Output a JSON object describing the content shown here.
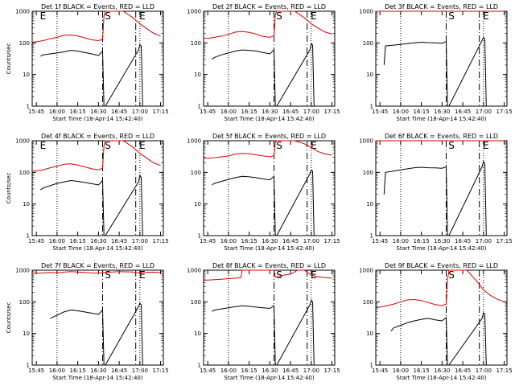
{
  "colors": {
    "events": "#000000",
    "lld": "#dd0000",
    "axes": "#000000",
    "background": "#ffffff"
  },
  "chart_data": [
    {
      "type": "line",
      "title": "Det 1f BLACK = Events, RED = LLD",
      "xlabel": "Start Time (18-Apr-14 15:42:40)",
      "ylabel": "Counts/sec",
      "xticks": [
        "15:45",
        "16:00",
        "16:15",
        "16:30",
        "16:45",
        "17:00",
        "17:15"
      ],
      "yticks": [
        "1",
        "10",
        "100",
        "1000"
      ],
      "ylim": [
        1,
        1000
      ],
      "yscale": "log",
      "markers": [
        "E",
        "S",
        "E"
      ],
      "series": [
        {
          "name": "LLD",
          "color": "#dd0000",
          "x": [
            -3,
            0,
            5,
            10,
            15,
            20,
            25,
            30,
            35,
            40,
            45,
            48,
            49,
            50,
            55,
            60,
            63,
            70,
            75,
            80,
            85,
            90
          ],
          "y": [
            105,
            108,
            118,
            135,
            150,
            175,
            178,
            165,
            145,
            125,
            118,
            130,
            700,
            1000,
            1000,
            1000,
            1000,
            620,
            400,
            280,
            200,
            165
          ]
        },
        {
          "name": "Events",
          "color": "#000000",
          "x": [
            3,
            5,
            10,
            15,
            20,
            25,
            30,
            35,
            40,
            45,
            48,
            49,
            50,
            74,
            75,
            76,
            77,
            78,
            79
          ],
          "y": [
            38,
            42,
            45,
            48,
            52,
            58,
            55,
            50,
            45,
            40,
            55,
            1,
            1,
            60,
            88,
            80,
            1,
            1,
            1
          ]
        }
      ]
    },
    {
      "type": "line",
      "title": "Det 2f BLACK = Events, RED = LLD",
      "xlabel": "Start Time (18-Apr-14 15:42:40)",
      "ylabel": "",
      "xticks": [
        "15:45",
        "16:00",
        "16:15",
        "16:30",
        "16:45",
        "17:00",
        "17:15"
      ],
      "yticks": [
        "1",
        "10",
        "100",
        "1000"
      ],
      "ylim": [
        1,
        1000
      ],
      "yscale": "log",
      "markers": [
        "S",
        "E"
      ],
      "series": [
        {
          "name": "LLD",
          "color": "#dd0000",
          "x": [
            -3,
            0,
            5,
            10,
            15,
            20,
            25,
            30,
            35,
            40,
            45,
            48,
            49,
            50,
            55,
            60,
            63,
            70,
            75,
            80,
            85,
            90
          ],
          "y": [
            140,
            140,
            150,
            165,
            185,
            220,
            230,
            215,
            190,
            160,
            150,
            170,
            800,
            1000,
            1000,
            1000,
            1000,
            620,
            400,
            290,
            220,
            190
          ]
        },
        {
          "name": "Events",
          "color": "#000000",
          "x": [
            3,
            5,
            10,
            15,
            20,
            25,
            30,
            35,
            40,
            45,
            48,
            49,
            50,
            74,
            75,
            76,
            77,
            78,
            79
          ],
          "y": [
            30,
            35,
            42,
            48,
            55,
            60,
            58,
            55,
            50,
            45,
            60,
            1,
            1,
            60,
            95,
            85,
            1,
            1,
            1
          ]
        }
      ]
    },
    {
      "type": "line",
      "title": "Det 3f BLACK = Events, RED = LLD",
      "xlabel": "Start Time (18-Apr-14 15:42:40)",
      "ylabel": "",
      "xticks": [
        "15:45",
        "16:00",
        "16:15",
        "16:30",
        "16:45",
        "17:00",
        "17:15"
      ],
      "yticks": [
        "1",
        "10",
        "100",
        "1000"
      ],
      "ylim": [
        1,
        1000
      ],
      "yscale": "log",
      "markers": [
        "S",
        "E"
      ],
      "series": [
        {
          "name": "LLD",
          "color": "#dd0000",
          "x": [
            -3,
            10,
            20,
            30,
            40,
            50,
            60,
            70,
            80,
            90
          ],
          "y": [
            1000,
            1000,
            1000,
            1000,
            1000,
            1000,
            1000,
            1000,
            1000,
            1000
          ]
        },
        {
          "name": "Events",
          "color": "#000000",
          "x": [
            3,
            4,
            10,
            15,
            20,
            25,
            30,
            35,
            40,
            45,
            48,
            49,
            50,
            74,
            75,
            76,
            77,
            78,
            79
          ],
          "y": [
            20,
            80,
            85,
            90,
            95,
            100,
            105,
            102,
            100,
            98,
            110,
            1,
            1,
            120,
            150,
            130,
            1,
            1,
            1
          ]
        }
      ]
    },
    {
      "type": "line",
      "title": "Det 4f BLACK = Events, RED = LLD",
      "xlabel": "Start Time (18-Apr-14 15:42:40)",
      "ylabel": "Counts/sec",
      "xticks": [
        "15:45",
        "16:00",
        "16:15",
        "16:30",
        "16:45",
        "17:00",
        "17:15"
      ],
      "yticks": [
        "1",
        "10",
        "100",
        "1000"
      ],
      "ylim": [
        1,
        1000
      ],
      "yscale": "log",
      "markers": [
        "E",
        "S",
        "E"
      ],
      "series": [
        {
          "name": "LLD",
          "color": "#dd0000",
          "x": [
            -3,
            0,
            5,
            10,
            15,
            20,
            25,
            30,
            35,
            40,
            45,
            48,
            49,
            50,
            55,
            60,
            63,
            70,
            75,
            80,
            85,
            90
          ],
          "y": [
            110,
            112,
            120,
            140,
            155,
            180,
            185,
            170,
            150,
            130,
            120,
            135,
            700,
            1000,
            1000,
            1000,
            1000,
            620,
            400,
            280,
            200,
            165
          ]
        },
        {
          "name": "Events",
          "color": "#000000",
          "x": [
            3,
            5,
            10,
            15,
            20,
            25,
            30,
            35,
            40,
            45,
            48,
            49,
            50,
            74,
            75,
            76,
            77,
            78,
            79
          ],
          "y": [
            28,
            32,
            38,
            45,
            50,
            55,
            52,
            48,
            44,
            40,
            55,
            1,
            1,
            50,
            80,
            70,
            1,
            1,
            1
          ]
        }
      ]
    },
    {
      "type": "line",
      "title": "Det 5f BLACK = Events, RED = LLD",
      "xlabel": "Start Time (18-Apr-14 15:42:40)",
      "ylabel": "",
      "xticks": [
        "15:45",
        "16:00",
        "16:15",
        "16:30",
        "16:45",
        "17:00",
        "17:15"
      ],
      "yticks": [
        "1",
        "10",
        "100",
        "1000"
      ],
      "ylim": [
        1,
        1000
      ],
      "yscale": "log",
      "markers": [
        "S",
        "E"
      ],
      "series": [
        {
          "name": "LLD",
          "color": "#dd0000",
          "x": [
            -3,
            0,
            5,
            10,
            15,
            20,
            25,
            30,
            35,
            40,
            45,
            48,
            49,
            50,
            55,
            60,
            63,
            70,
            75,
            80,
            85,
            90
          ],
          "y": [
            280,
            280,
            290,
            310,
            330,
            380,
            400,
            390,
            360,
            330,
            310,
            340,
            900,
            1000,
            1000,
            1000,
            1000,
            800,
            600,
            450,
            380,
            350
          ]
        },
        {
          "name": "Events",
          "color": "#000000",
          "x": [
            3,
            5,
            10,
            15,
            20,
            25,
            30,
            35,
            40,
            45,
            48,
            49,
            50,
            74,
            75,
            76,
            77,
            78,
            79
          ],
          "y": [
            40,
            45,
            52,
            60,
            68,
            75,
            72,
            68,
            62,
            58,
            75,
            1,
            1,
            90,
            120,
            110,
            1,
            1,
            1
          ]
        }
      ]
    },
    {
      "type": "line",
      "title": "Det 6f BLACK = Events, RED = LLD",
      "xlabel": "Start Time (18-Apr-14 15:42:40)",
      "ylabel": "",
      "xticks": [
        "15:45",
        "16:00",
        "16:15",
        "16:30",
        "16:45",
        "17:00",
        "17:15"
      ],
      "yticks": [
        "1",
        "10",
        "100",
        "1000"
      ],
      "ylim": [
        1,
        1000
      ],
      "yscale": "log",
      "markers": [
        "S",
        "E"
      ],
      "series": [
        {
          "name": "LLD",
          "color": "#dd0000",
          "x": [
            -3,
            10,
            20,
            30,
            40,
            50,
            60,
            70,
            80,
            90
          ],
          "y": [
            1000,
            1000,
            1000,
            1000,
            1000,
            1000,
            1000,
            1000,
            1000,
            1000
          ]
        },
        {
          "name": "Events",
          "color": "#000000",
          "x": [
            3,
            4,
            10,
            15,
            20,
            25,
            30,
            35,
            40,
            45,
            48,
            49,
            50,
            74,
            75,
            76,
            77,
            78,
            79
          ],
          "y": [
            20,
            100,
            110,
            120,
            130,
            140,
            145,
            140,
            138,
            135,
            150,
            1,
            1,
            150,
            220,
            190,
            1,
            1,
            1
          ]
        }
      ]
    },
    {
      "type": "line",
      "title": "Det 7f BLACK = Events, RED = LLD",
      "xlabel": "Start Time (18-Apr-14 15:42:40)",
      "ylabel": "Counts/sec",
      "xticks": [
        "15:45",
        "16:00",
        "16:15",
        "16:30",
        "16:45",
        "17:00",
        "17:15"
      ],
      "yticks": [
        "1",
        "10",
        "100",
        "1000"
      ],
      "ylim": [
        1,
        1000
      ],
      "yscale": "log",
      "markers": [
        "S",
        "E"
      ],
      "series": [
        {
          "name": "LLD",
          "color": "#dd0000",
          "x": [
            -3,
            5,
            10,
            15,
            20,
            25,
            30,
            35,
            40,
            45,
            50,
            60,
            70,
            75,
            80,
            85,
            90
          ],
          "y": [
            800,
            820,
            850,
            830,
            870,
            900,
            880,
            850,
            820,
            800,
            850,
            900,
            880,
            820,
            850,
            870,
            840
          ]
        },
        {
          "name": "Events",
          "color": "#000000",
          "x": [
            10,
            15,
            20,
            25,
            30,
            35,
            40,
            45,
            48,
            49,
            50,
            74,
            75,
            76,
            77,
            78,
            79
          ],
          "y": [
            30,
            38,
            48,
            55,
            52,
            48,
            44,
            40,
            55,
            1,
            1,
            70,
            90,
            80,
            1,
            1,
            1
          ]
        }
      ]
    },
    {
      "type": "line",
      "title": "Det 8f BLACK = Events, RED = LLD",
      "xlabel": "Start Time (18-Apr-14 15:42:40)",
      "ylabel": "",
      "xticks": [
        "15:45",
        "16:00",
        "16:15",
        "16:30",
        "16:45",
        "17:00",
        "17:15"
      ],
      "yticks": [
        "1",
        "10",
        "100",
        "1000"
      ],
      "ylim": [
        1,
        1000
      ],
      "yscale": "log",
      "markers": [
        "S",
        "E"
      ],
      "series": [
        {
          "name": "LLD",
          "color": "#dd0000",
          "x": [
            -3,
            5,
            10,
            15,
            20,
            24,
            25,
            30,
            35,
            40,
            45,
            48,
            49,
            50,
            55,
            60,
            65,
            70,
            75,
            80,
            85,
            90
          ],
          "y": [
            480,
            500,
            520,
            540,
            560,
            580,
            1000,
            1000,
            1000,
            1000,
            1000,
            1000,
            600,
            620,
            700,
            750,
            1000,
            1000,
            700,
            620,
            580,
            560
          ]
        },
        {
          "name": "Events",
          "color": "#000000",
          "x": [
            3,
            5,
            10,
            15,
            20,
            25,
            30,
            35,
            40,
            45,
            48,
            49,
            50,
            74,
            75,
            76,
            77,
            78,
            79
          ],
          "y": [
            50,
            55,
            60,
            65,
            70,
            75,
            72,
            68,
            65,
            62,
            75,
            1,
            1,
            80,
            110,
            100,
            1,
            1,
            1
          ]
        }
      ]
    },
    {
      "type": "line",
      "title": "Det 9f BLACK = Events, RED = LLD",
      "xlabel": "Start Time (18-Apr-14 15:42:40)",
      "ylabel": "",
      "xticks": [
        "15:45",
        "16:00",
        "16:15",
        "16:30",
        "16:45",
        "17:00",
        "17:15"
      ],
      "yticks": [
        "1",
        "10",
        "100",
        "1000"
      ],
      "ylim": [
        1,
        1000
      ],
      "yscale": "log",
      "markers": [
        "S"
      ],
      "series": [
        {
          "name": "LLD",
          "color": "#dd0000",
          "x": [
            -3,
            0,
            5,
            10,
            15,
            20,
            25,
            30,
            35,
            40,
            45,
            48,
            49,
            50,
            55,
            60,
            63,
            70,
            75,
            80,
            85,
            90
          ],
          "y": [
            65,
            68,
            75,
            85,
            100,
            115,
            118,
            110,
            95,
            82,
            76,
            85,
            500,
            1000,
            1000,
            1000,
            1000,
            450,
            240,
            160,
            120,
            100
          ]
        },
        {
          "name": "Events",
          "color": "#000000",
          "x": [
            8,
            10,
            15,
            20,
            25,
            30,
            35,
            40,
            45,
            48,
            49,
            50,
            74,
            75,
            76,
            77,
            78,
            79
          ],
          "y": [
            12,
            15,
            18,
            22,
            25,
            28,
            30,
            27,
            25,
            32,
            1,
            1,
            30,
            45,
            40,
            1,
            1,
            1
          ]
        }
      ]
    }
  ]
}
